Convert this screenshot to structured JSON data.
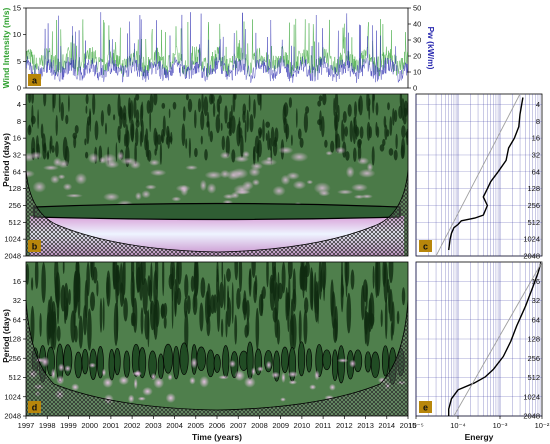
{
  "colors": {
    "wind_series": "#2ea02e",
    "pw_series": "#2b2bb0",
    "wavelet_dark": "#0f2a10",
    "wavelet_mid": "#4c7f4a",
    "wavelet_light": "#f0c8ee",
    "contour": "#000000",
    "global_spectrum": "#000000",
    "significance_line": "#a0a0a0",
    "grid": "#2a2a9a"
  },
  "chart_data": [
    {
      "id": "a",
      "type": "line",
      "panel_label": "a",
      "xlabel": "Time (years)",
      "ylabel_left": "Wind Intensity (m/s)",
      "ylabel_right": "Pw (kW/m)",
      "xlim": [
        1997,
        2015
      ],
      "ylim_left": [
        0,
        15
      ],
      "ylim_right": [
        0,
        50
      ],
      "left_ticks": [
        0,
        5,
        10,
        15
      ],
      "right_ticks": [
        0,
        10,
        20,
        30,
        40,
        50
      ],
      "series": [
        {
          "name": "Wind Intensity (m/s)",
          "axis": "left",
          "typical_range": [
            2,
            8
          ]
        },
        {
          "name": "Pw (kW/m)",
          "axis": "right",
          "typical_range": [
            3,
            20
          ],
          "peak": 48
        }
      ]
    },
    {
      "id": "b",
      "type": "heatmap",
      "panel_label": "b",
      "ylabel": "Period (days)",
      "xlim": [
        1997,
        2015
      ],
      "y_scale": "log2",
      "y_ticks": [
        4,
        8,
        16,
        32,
        64,
        128,
        256,
        512,
        1024,
        2048
      ],
      "significant_band_period": 512
    },
    {
      "id": "c",
      "type": "line",
      "panel_label": "c",
      "x_scale": "log",
      "y_scale": "log2",
      "y_ticks": [
        4,
        8,
        16,
        32,
        64,
        128,
        256,
        512,
        1024,
        2048
      ],
      "series": [
        {
          "name": "global spectrum",
          "points": [
            [
              0.0035,
              3
            ],
            [
              0.003,
              6
            ],
            [
              0.0028,
              10
            ],
            [
              0.0022,
              16
            ],
            [
              0.0016,
              24
            ],
            [
              0.0014,
              40
            ],
            [
              0.0009,
              64
            ],
            [
              0.0006,
              96
            ],
            [
              0.0005,
              128
            ],
            [
              0.0004,
              180
            ],
            [
              0.0005,
              256
            ],
            [
              0.0004,
              380
            ],
            [
              0.00025,
              430
            ],
            [
              0.00012,
              480
            ],
            [
              0.0001,
              560
            ],
            [
              8e-05,
              640
            ],
            [
              7e-05,
              800
            ],
            [
              6.5e-05,
              1024
            ],
            [
              6e-05,
              1600
            ]
          ]
        },
        {
          "name": "significance",
          "points": [
            [
              0.003,
              2
            ],
            [
              3e-05,
              2048
            ]
          ]
        }
      ]
    },
    {
      "id": "d",
      "type": "heatmap",
      "panel_label": "d",
      "ylabel": "Period (days)",
      "xlabel": "Time (years)",
      "xlim": [
        1997,
        2015
      ],
      "x_ticks": [
        1997,
        1998,
        1999,
        2000,
        2001,
        2002,
        2003,
        2004,
        2005,
        2006,
        2007,
        2008,
        2009,
        2010,
        2011,
        2012,
        2013,
        2014,
        2015
      ],
      "y_scale": "log2",
      "y_ticks": [
        16,
        32,
        64,
        128,
        256,
        512,
        1024,
        2048
      ],
      "significant_band_period": 300
    },
    {
      "id": "e",
      "type": "line",
      "panel_label": "e",
      "xlabel": "Energy",
      "x_scale": "log",
      "xlim": [
        1e-05,
        0.01
      ],
      "x_ticks": [
        1e-05,
        0.0001,
        0.001,
        0.01
      ],
      "x_tick_labels": [
        "10⁻⁵",
        "10⁻⁴",
        "10⁻³",
        "10⁻²"
      ],
      "y_scale": "log2",
      "y_ticks": [
        16,
        32,
        64,
        128,
        256,
        512,
        1024,
        2048
      ],
      "series": [
        {
          "name": "global spectrum",
          "points": [
            [
              0.0095,
              8
            ],
            [
              0.008,
              12
            ],
            [
              0.006,
              20
            ],
            [
              0.004,
              40
            ],
            [
              0.0025,
              80
            ],
            [
              0.0018,
              140
            ],
            [
              0.0012,
              240
            ],
            [
              0.0007,
              380
            ],
            [
              0.00045,
              500
            ],
            [
              0.00025,
              620
            ],
            [
              0.0001,
              800
            ],
            [
              7e-05,
              1100
            ],
            [
              6e-05,
              1600
            ],
            [
              6e-05,
              2048
            ]
          ]
        },
        {
          "name": "significance",
          "points": [
            [
              0.01,
              8
            ],
            [
              8e-05,
              2048
            ]
          ]
        }
      ]
    }
  ]
}
